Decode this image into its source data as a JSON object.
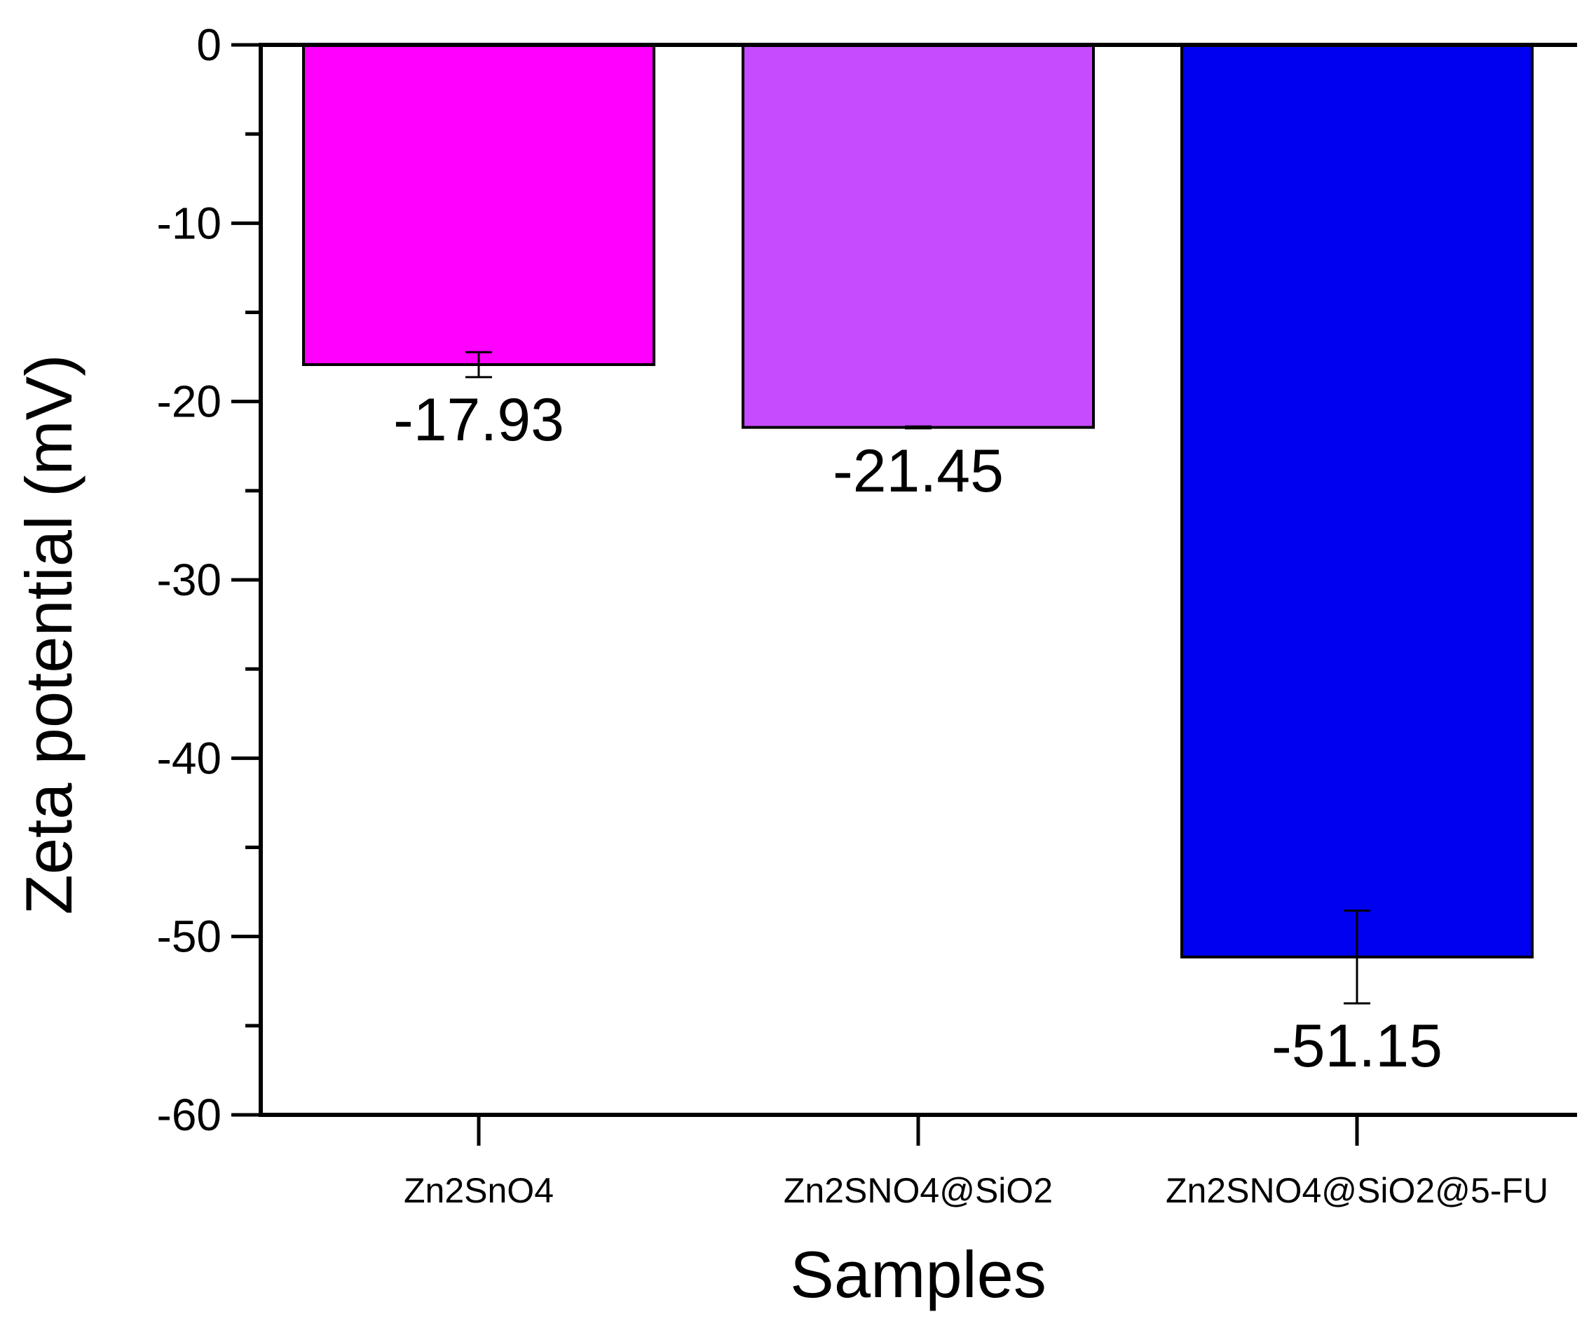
{
  "chart_data": {
    "type": "bar",
    "title": "",
    "xlabel": "Samples",
    "ylabel": "Zeta potential (mV)",
    "ylim": [
      -60,
      0
    ],
    "yticks": [
      0,
      -10,
      -20,
      -30,
      -40,
      -50,
      -60
    ],
    "ytick_labels": [
      "0",
      "-10",
      "-20",
      "-30",
      "-40",
      "-50",
      "-60"
    ],
    "y_minor_step": 5,
    "grid": false,
    "legend": "none",
    "categories": [
      "Zn2SnO4",
      "Zn2SNO4@SiO2",
      "Zn2SNO4@SiO2@5-FU"
    ],
    "values": [
      -17.93,
      -21.45,
      -51.15
    ],
    "errors": [
      0.7,
      0.05,
      2.6
    ],
    "data_labels": [
      "-17.93",
      "-21.45",
      "-51.15"
    ],
    "colors": [
      "#FF00FF",
      "#C64BFF",
      "#0000F0"
    ]
  }
}
